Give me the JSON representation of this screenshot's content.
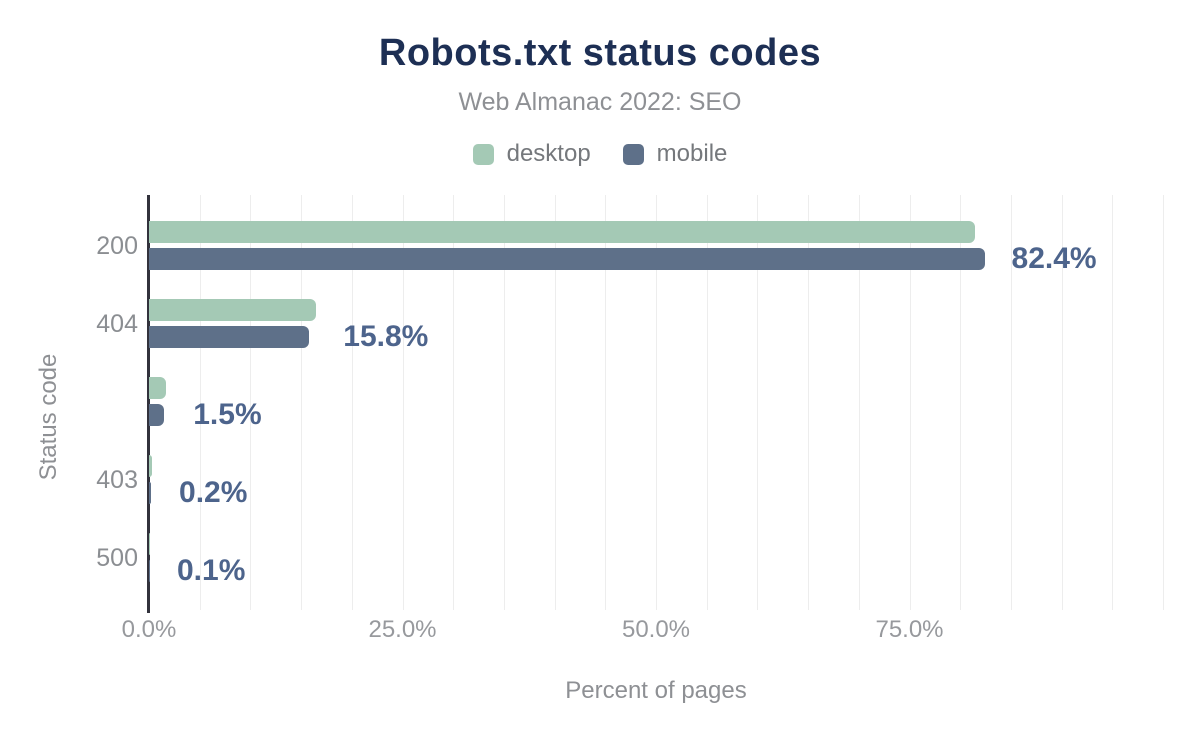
{
  "chart": {
    "title": "Robots.txt status codes",
    "subtitle": "Web Almanac 2022: SEO",
    "xlabel": "Percent of pages",
    "ylabel": "Status code",
    "x_ticks": [
      "0.0%",
      "25.0%",
      "50.0%",
      "75.0%"
    ]
  },
  "colors": {
    "desktop": "#a4c9b5",
    "mobile": "#5e7089",
    "value_label": "#4d648c",
    "title": "#1d2f54",
    "axis_line": "#32323c",
    "gridline": "#ededed",
    "muted_text": "#8e9094"
  },
  "chart_data": {
    "type": "bar",
    "orientation": "horizontal",
    "title": "Robots.txt status codes",
    "subtitle": "Web Almanac 2022: SEO",
    "xlabel": "Percent of pages",
    "ylabel": "Status code",
    "categories": [
      "200",
      "404",
      "",
      "403",
      "500"
    ],
    "series": [
      {
        "name": "desktop",
        "color": "#a4c9b5",
        "values": [
          81.5,
          16.5,
          1.7,
          0.3,
          0.1
        ]
      },
      {
        "name": "mobile",
        "color": "#5e7089",
        "values": [
          82.4,
          15.8,
          1.5,
          0.2,
          0.1
        ]
      }
    ],
    "data_labels": [
      "82.4%",
      "15.8%",
      "1.5%",
      "0.2%",
      "0.1%"
    ],
    "data_label_series": "mobile",
    "xlim": [
      0,
      100
    ],
    "x_tick_values": [
      0,
      25,
      50,
      75
    ],
    "x_tick_labels": [
      "0.0%",
      "25.0%",
      "50.0%",
      "75.0%"
    ],
    "grid_step_percent": 5,
    "grid": "vertical-only",
    "legend_position": "top-center"
  }
}
